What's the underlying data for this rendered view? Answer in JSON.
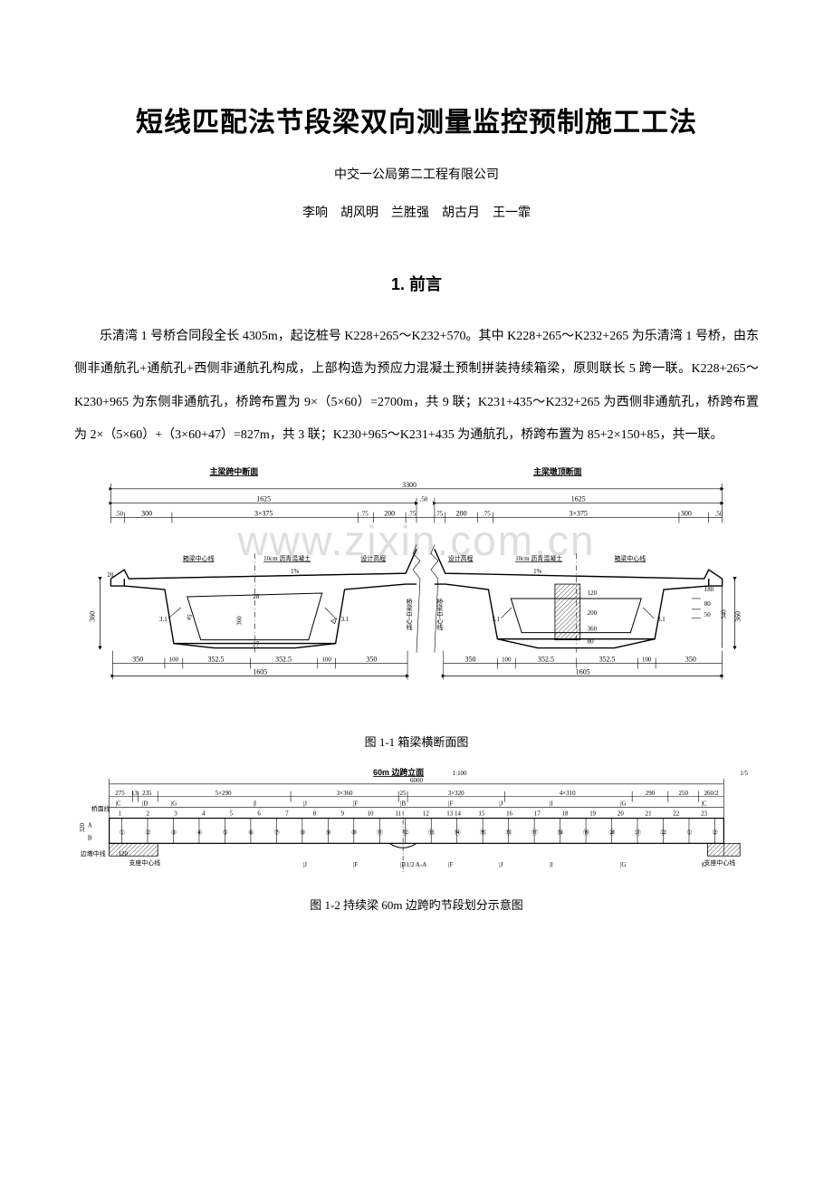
{
  "title": "短线匹配法节段梁双向测量监控预制施工工法",
  "organization": "中交一公局第二工程有限公司",
  "authors": "李响　胡风明　兰胜强　胡古月　王一霏",
  "section1_heading": "1. 前言",
  "paragraph1": "乐清湾 1 号桥合同段全长 4305m，起讫桩号 K228+265～K232+570。其中 K228+265～K232+265 为乐清湾 1 号桥，由东侧非通航孔+通航孔+西侧非通航孔构成，上部构造为预应力混凝土预制拼装持续箱梁，原则联长 5 跨一联。K228+265～K230+965 为东侧非通航孔，桥跨布置为 9×（5×60）=2700m，共 9 联；K231+435～K232+265 为西侧非通航孔，桥跨布置为 2×（5×60）+（3×60+47）=827m，共 3 联；K230+965～K231+435 为通航孔，桥跨布置为 85+2×150+85，共一联。",
  "watermark": "www.zixin.com.cn",
  "figure1": {
    "caption": "图 1-1  箱梁横断面图",
    "left_title": "主梁跨中断面",
    "right_title": "主梁墩顶断面",
    "top_dims": {
      "total": "3300",
      "half": "1625",
      "edge": ".50",
      "outer": "300",
      "lanes_label": "3×375",
      "approach": ".75",
      "center_a": "200",
      "center_b": ".75",
      "mid_gap": ".50"
    },
    "labels": {
      "centerline": "箱梁中心线",
      "asphalt": "10cm 沥青混凝土",
      "grade": "1%",
      "design_elev": "设计高程",
      "bridge_cl": "桥梁中心线"
    },
    "left_v_dims": {
      "top_leg": "20",
      "h": "360"
    },
    "right_v_dims": {
      "a": "180",
      "b": "80",
      "c": "50",
      "d": "120",
      "e": "200",
      "f": "360",
      "g": "80",
      "h": "340",
      "t": "360"
    },
    "slope": "3.1",
    "inner_h": "360",
    "thk": "28",
    "thk2": "27",
    "mid_thk": "45",
    "bottom_section": {
      "l_edge": "350",
      "l_a": "100",
      "l_b": "352.5",
      "l_c": "352.5",
      "l_d": "100",
      "l_e": "350",
      "half_total": "1605"
    }
  },
  "figure2": {
    "caption": "图 1-2  持续梁 60m 边跨旳节段划分示意图",
    "title": "60m 边跨立面",
    "scale": "1:100",
    "right_frac": "1/5",
    "total": "6000",
    "group_labels": [
      "275",
      "5×290",
      "3×360",
      "25",
      "3×320",
      "4×310",
      "290",
      "250",
      "260/2"
    ],
    "small_a": "13",
    "small_b": "3",
    "small_c": "235",
    "section_marks": [
      "C",
      "D",
      "G",
      "I",
      "J",
      "F",
      "B",
      "F",
      "J",
      "I",
      "G",
      "C"
    ],
    "row_top_label": "桥面线",
    "row_bot_label": "边墩中线",
    "row_mid_label": "支座中心线",
    "cl_label": "1/2 A-A",
    "left_h1": "A",
    "left_h2": "B",
    "left_h3": "320",
    "segs_top": [
      "1",
      "2",
      "3",
      "4",
      "5",
      "6",
      "7",
      "8",
      "9",
      "10",
      "11",
      "12",
      "13 14",
      "15",
      "16",
      "17",
      "18",
      "19",
      "20",
      "21",
      "22",
      "23"
    ],
    "segs_circled": [
      "①",
      "②",
      "③",
      "④",
      "⑤",
      "⑥",
      "⑦",
      "⑧",
      "⑨",
      "⑩",
      "⑪",
      "⑫",
      "⑬",
      "⑭",
      "⑮",
      "⑯",
      "⑰",
      "⑱",
      "⑲",
      "⑳",
      "㉑",
      "㉒",
      "①",
      "②"
    ],
    "bottom_dim": "120"
  }
}
